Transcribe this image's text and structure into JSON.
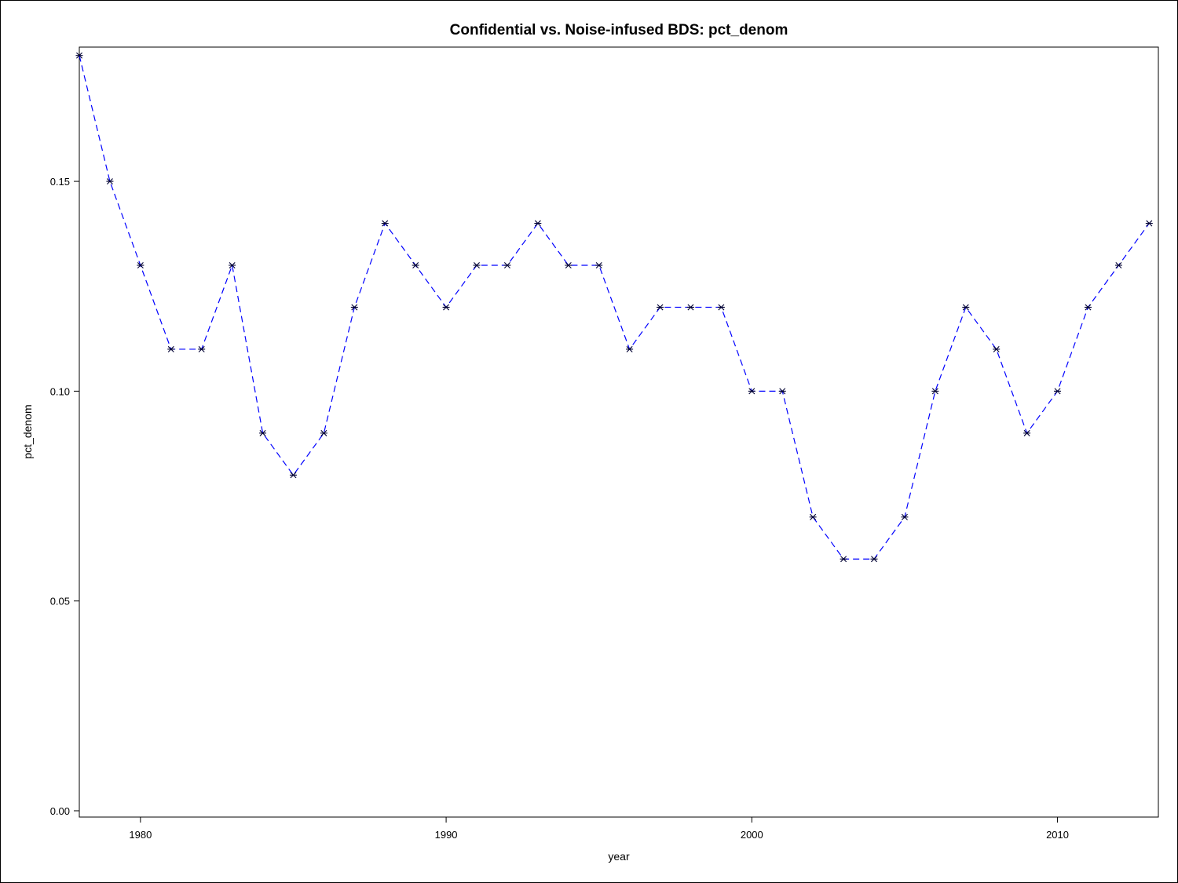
{
  "chart_data": {
    "type": "line",
    "title": "Confidential vs. Noise-infused BDS: pct_denom",
    "xlabel": "year",
    "ylabel": "pct_denom",
    "xlim": [
      1978,
      2013.3
    ],
    "ylim": [
      -0.0015,
      0.182
    ],
    "x_ticks": [
      1980,
      1990,
      2000,
      2010
    ],
    "x_tick_labels": [
      "1980",
      "1990",
      "2000",
      "2010"
    ],
    "y_ticks": [
      0.0,
      0.05,
      0.1,
      0.15
    ],
    "y_tick_labels": [
      "0.00",
      "0.05",
      "0.10",
      "0.15"
    ],
    "grid": false,
    "line_style": "dashed",
    "marker": "asterisk",
    "colors": {
      "line": "#0000ff",
      "marker": "#000033",
      "frame": "#000000"
    },
    "series": [
      {
        "x": [
          1978,
          1979,
          1980,
          1981,
          1982,
          1983,
          1984,
          1985,
          1986,
          1987,
          1988,
          1989,
          1990,
          1991,
          1992,
          1993,
          1994,
          1995,
          1996,
          1997,
          1998,
          1999,
          2000,
          2001,
          2002,
          2003,
          2004,
          2005,
          2006,
          2007,
          2008,
          2009,
          2010,
          2011,
          2012,
          2013
        ],
        "y": [
          0.18,
          0.15,
          0.13,
          0.11,
          0.11,
          0.13,
          0.09,
          0.08,
          0.09,
          0.12,
          0.14,
          0.13,
          0.12,
          0.13,
          0.13,
          0.14,
          0.13,
          0.13,
          0.11,
          0.12,
          0.12,
          0.12,
          0.1,
          0.1,
          0.07,
          0.06,
          0.06,
          0.07,
          0.1,
          0.12,
          0.11,
          0.09,
          0.1,
          0.12,
          0.13,
          0.14
        ]
      }
    ]
  }
}
